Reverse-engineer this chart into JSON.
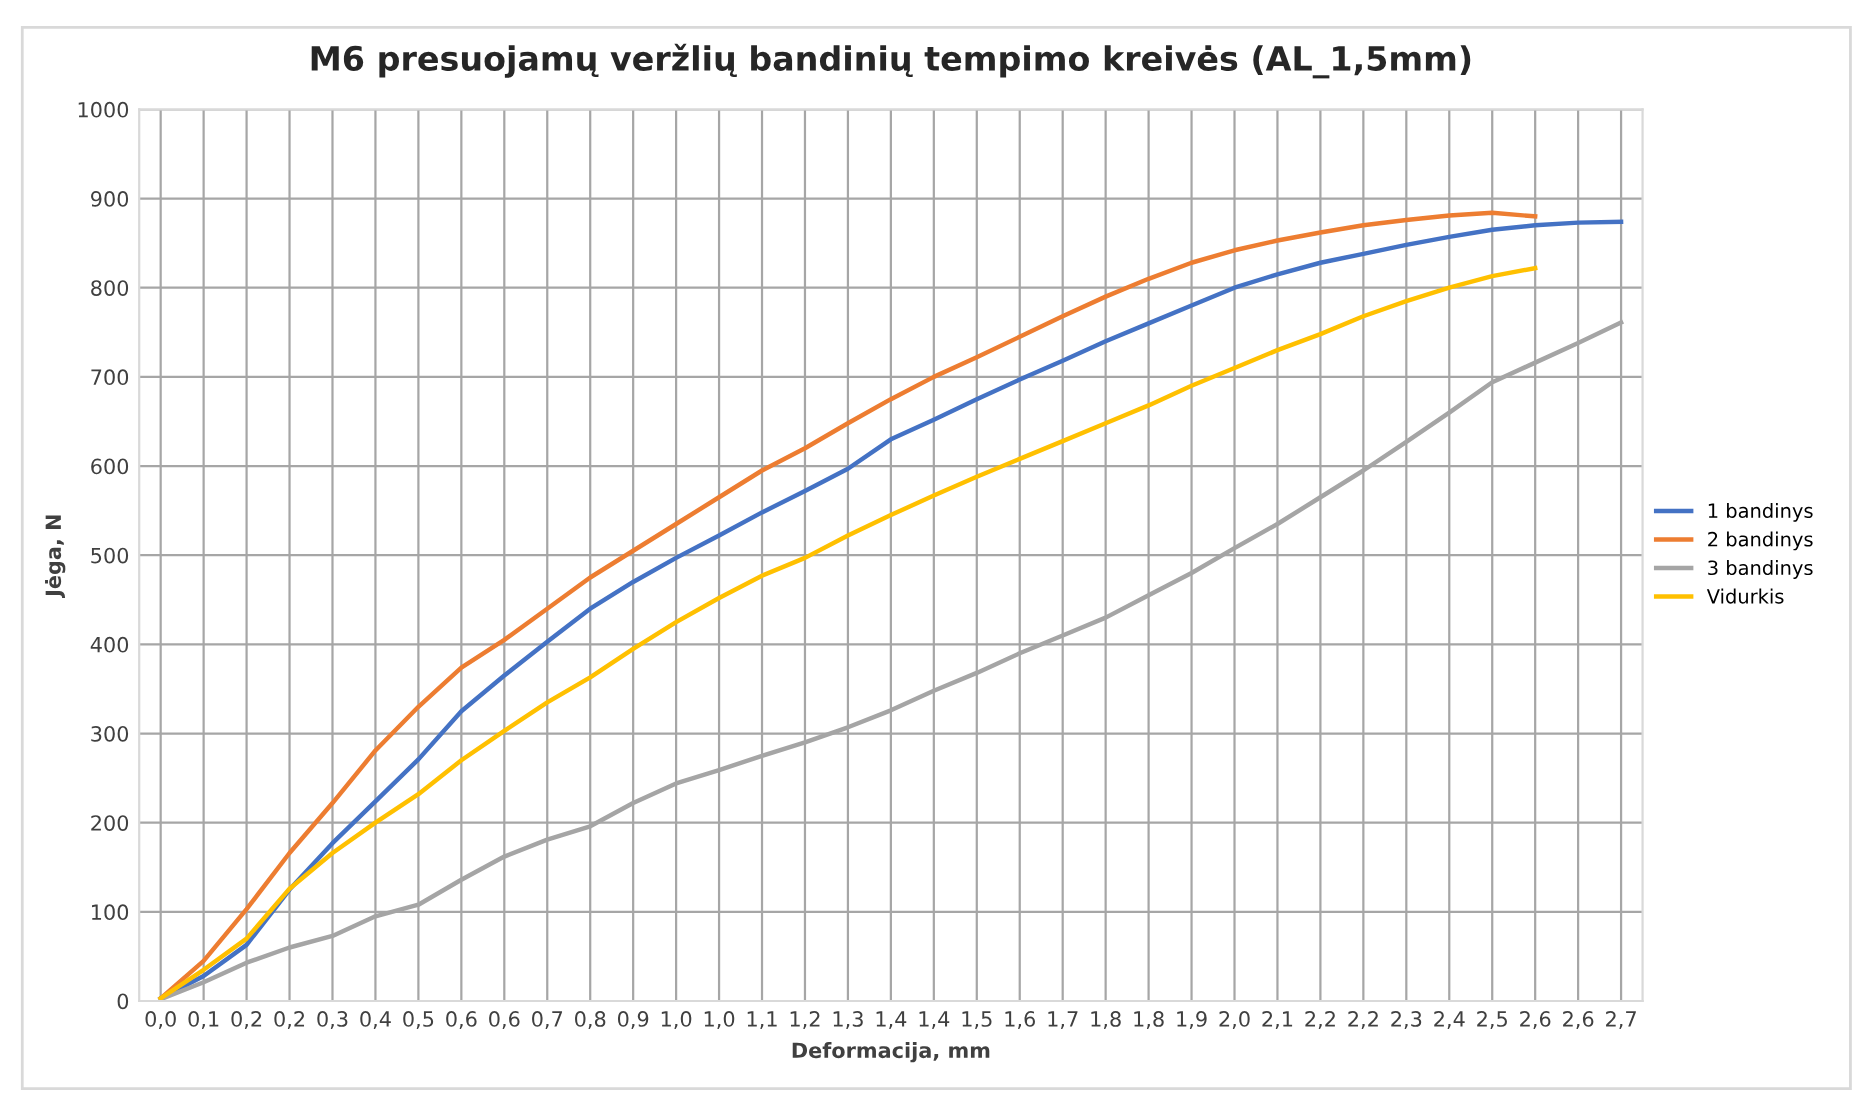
{
  "chart_data": {
    "type": "line",
    "title": "M6 presuojamų veržlių bandinių tempimo kreivės (AL_1,5mm)",
    "xlabel": "Deformacija, mm",
    "ylabel": "Jėga, N",
    "categories": [
      "0,0",
      "0,1",
      "0,2",
      "0,2",
      "0,3",
      "0,4",
      "0,5",
      "0,6",
      "0,6",
      "0,7",
      "0,8",
      "0,9",
      "1,0",
      "1,0",
      "1,1",
      "1,2",
      "1,3",
      "1,4",
      "1,4",
      "1,5",
      "1,6",
      "1,7",
      "1,8",
      "1,8",
      "1,9",
      "2,0",
      "2,1",
      "2,2",
      "2,2",
      "2,3",
      "2,4",
      "2,5",
      "2,6",
      "2,6",
      "2,7"
    ],
    "series": [
      {
        "name": "1 bandinys",
        "color": "#4472c4",
        "values": [
          3,
          28,
          63,
          125,
          177,
          224,
          271,
          325,
          365,
          403,
          440,
          470,
          497,
          522,
          548,
          572,
          597,
          630,
          652,
          675,
          697,
          718,
          740,
          760,
          780,
          800,
          815,
          828,
          838,
          848,
          857,
          865,
          870,
          873,
          874
        ]
      },
      {
        "name": "2 bandinys",
        "color": "#ed7d31",
        "values": [
          3,
          45,
          103,
          166,
          222,
          281,
          330,
          374,
          405,
          440,
          475,
          505,
          535,
          565,
          595,
          620,
          648,
          675,
          700,
          722,
          745,
          768,
          790,
          810,
          828,
          842,
          853,
          862,
          870,
          876,
          881,
          884,
          880,
          null,
          null
        ]
      },
      {
        "name": "3 bandinys",
        "color": "#a5a5a5",
        "values": [
          2,
          21,
          43,
          60,
          73,
          95,
          108,
          136,
          162,
          181,
          196,
          222,
          244,
          259,
          275,
          290,
          307,
          326,
          348,
          368,
          390,
          410,
          430,
          455,
          480,
          508,
          535,
          565,
          595,
          627,
          660,
          694,
          716,
          738,
          761
        ]
      },
      {
        "name": "Vidurkis",
        "color": "#ffc000",
        "values": [
          3,
          35,
          70,
          126,
          166,
          200,
          232,
          270,
          303,
          335,
          363,
          395,
          425,
          452,
          477,
          497,
          522,
          545,
          567,
          588,
          608,
          628,
          648,
          668,
          690,
          710,
          730,
          748,
          768,
          785,
          800,
          813,
          822,
          null,
          null
        ]
      }
    ],
    "ylim": [
      0,
      1000
    ],
    "yticks": [
      0,
      100,
      200,
      300,
      400,
      500,
      600,
      700,
      800,
      900,
      1000
    ],
    "grid": true,
    "legend": "right",
    "marker": "none",
    "line_style": "solid"
  }
}
